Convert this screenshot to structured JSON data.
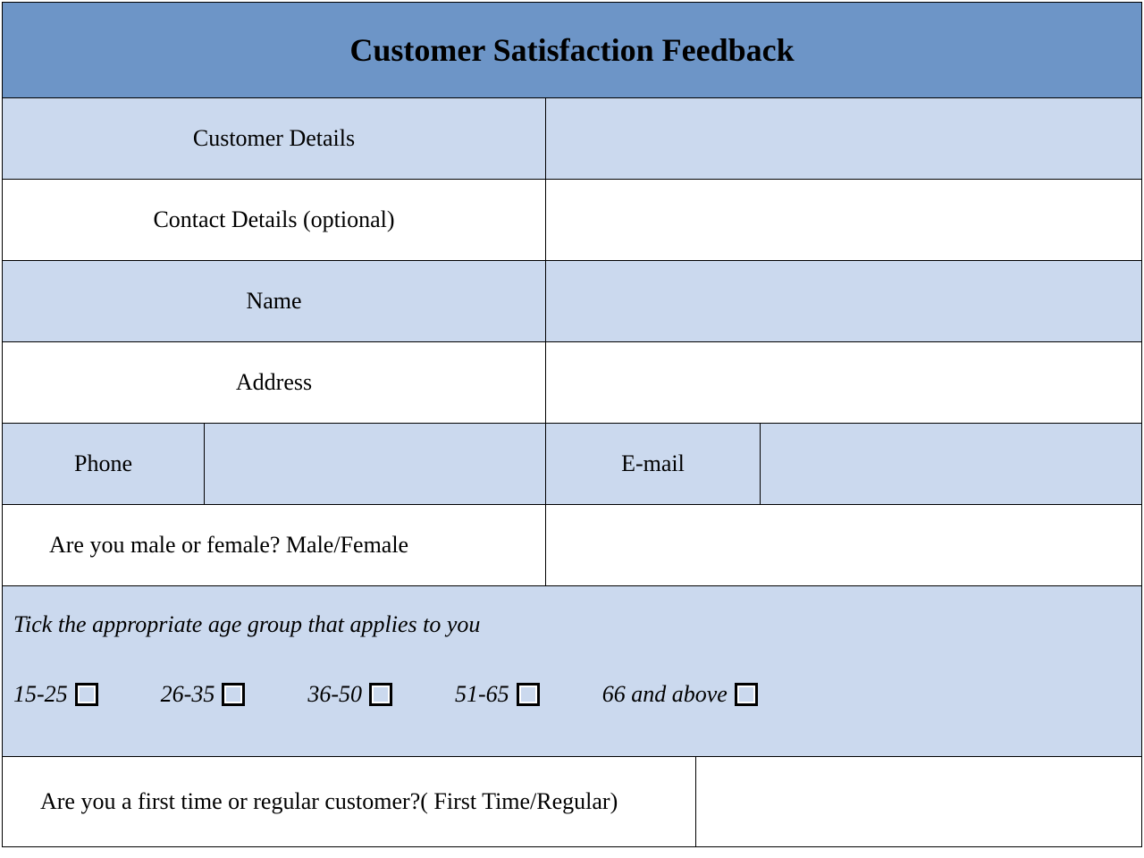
{
  "colors": {
    "header_bg": "#6d95c7",
    "light_bg": "#cbd9ee",
    "white": "#ffffff",
    "border": "#000000",
    "text": "#000000"
  },
  "title": "Customer Satisfaction Feedback",
  "rows": {
    "customer_details": "Customer Details",
    "contact_details": "Contact Details (optional)",
    "name": "Name",
    "address": "Address",
    "phone": "Phone",
    "email": "E-mail",
    "gender_question": "Are you male or female? Male/Female"
  },
  "age": {
    "prompt": "Tick the appropriate age group that applies to you",
    "options": [
      "15-25",
      "26-35",
      "36-50",
      "51-65",
      "66 and above"
    ]
  },
  "customer_type_question": "Are you a first time or regular customer?( First Time/Regular)"
}
